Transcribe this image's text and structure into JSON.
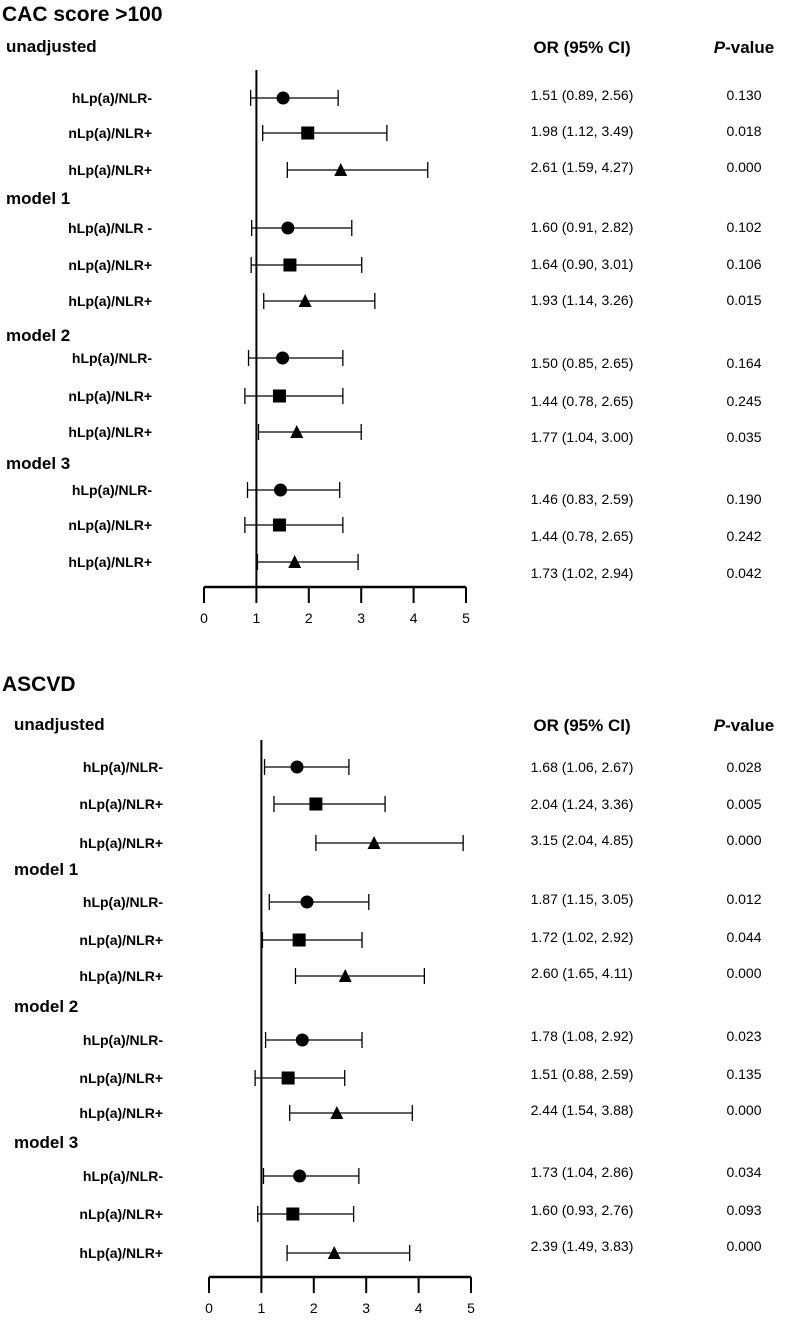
{
  "chart_data": [
    {
      "type": "forest",
      "title": "CAC score >100",
      "or_header": "OR (95% CI)",
      "p_header_italic": "P",
      "p_header_rest": "-value",
      "xlim": [
        0,
        5
      ],
      "xticks": [
        "0",
        "1",
        "2",
        "3",
        "4",
        "5"
      ],
      "reference_line": 1,
      "groups": [
        {
          "name": "unadjusted",
          "rows": [
            {
              "label": "hLp(a)/NLR-",
              "marker": "circle",
              "or": 1.51,
              "lo": 0.89,
              "hi": 2.56,
              "or_text": "1.51 (0.89, 2.56)",
              "p": "0.130"
            },
            {
              "label": "nLp(a)/NLR+",
              "marker": "square",
              "or": 1.98,
              "lo": 1.12,
              "hi": 3.49,
              "or_text": "1.98 (1.12, 3.49)",
              "p": "0.018"
            },
            {
              "label": "hLp(a)/NLR+",
              "marker": "triangle",
              "or": 2.61,
              "lo": 1.59,
              "hi": 4.27,
              "or_text": "2.61 (1.59, 4.27)",
              "p": "0.000"
            }
          ]
        },
        {
          "name": "model 1",
          "rows": [
            {
              "label": "hLp(a)/NLR -",
              "marker": "circle",
              "or": 1.6,
              "lo": 0.91,
              "hi": 2.82,
              "or_text": "1.60 (0.91, 2.82)",
              "p": "0.102"
            },
            {
              "label": "nLp(a)/NLR+",
              "marker": "square",
              "or": 1.64,
              "lo": 0.9,
              "hi": 3.01,
              "or_text": "1.64 (0.90, 3.01)",
              "p": "0.106"
            },
            {
              "label": "hLp(a)/NLR+",
              "marker": "triangle",
              "or": 1.93,
              "lo": 1.14,
              "hi": 3.26,
              "or_text": "1.93 (1.14, 3.26)",
              "p": "0.015"
            }
          ]
        },
        {
          "name": "model 2",
          "rows": [
            {
              "label": "hLp(a)/NLR-",
              "marker": "circle",
              "or": 1.5,
              "lo": 0.85,
              "hi": 2.65,
              "or_text": "1.50 (0.85, 2.65)",
              "p": "0.164"
            },
            {
              "label": "nLp(a)/NLR+",
              "marker": "square",
              "or": 1.44,
              "lo": 0.78,
              "hi": 2.65,
              "or_text": "1.44 (0.78, 2.65)",
              "p": "0.245"
            },
            {
              "label": "hLp(a)/NLR+",
              "marker": "triangle",
              "or": 1.77,
              "lo": 1.04,
              "hi": 3.0,
              "or_text": "1.77 (1.04, 3.00)",
              "p": "0.035"
            }
          ]
        },
        {
          "name": "model 3",
          "rows": [
            {
              "label": "hLp(a)/NLR-",
              "marker": "circle",
              "or": 1.46,
              "lo": 0.83,
              "hi": 2.59,
              "or_text": "1.46 (0.83, 2.59)",
              "p": "0.190"
            },
            {
              "label": "nLp(a)/NLR+",
              "marker": "square",
              "or": 1.44,
              "lo": 0.78,
              "hi": 2.65,
              "or_text": "1.44 (0.78, 2.65)",
              "p": "0.242"
            },
            {
              "label": "hLp(a)/NLR+",
              "marker": "triangle",
              "or": 1.73,
              "lo": 1.02,
              "hi": 2.94,
              "or_text": "1.73 (1.02, 2.94)",
              "p": "0.042"
            }
          ]
        }
      ]
    },
    {
      "type": "forest",
      "title": "ASCVD",
      "or_header": "OR (95% CI)",
      "p_header_italic": "P",
      "p_header_rest": "-value",
      "xlim": [
        0,
        5
      ],
      "xticks": [
        "0",
        "1",
        "2",
        "3",
        "4",
        "5"
      ],
      "reference_line": 1,
      "groups": [
        {
          "name": "unadjusted",
          "rows": [
            {
              "label": "hLp(a)/NLR-",
              "marker": "circle",
              "or": 1.68,
              "lo": 1.06,
              "hi": 2.67,
              "or_text": "1.68 (1.06, 2.67)",
              "p": "0.028"
            },
            {
              "label": "nLp(a)/NLR+",
              "marker": "square",
              "or": 2.04,
              "lo": 1.24,
              "hi": 3.36,
              "or_text": "2.04 (1.24, 3.36)",
              "p": "0.005"
            },
            {
              "label": "hLp(a)/NLR+",
              "marker": "triangle",
              "or": 3.15,
              "lo": 2.04,
              "hi": 4.85,
              "or_text": "3.15 (2.04, 4.85)",
              "p": "0.000"
            }
          ]
        },
        {
          "name": "model 1",
          "rows": [
            {
              "label": "hLp(a)/NLR-",
              "marker": "circle",
              "or": 1.87,
              "lo": 1.15,
              "hi": 3.05,
              "or_text": "1.87 (1.15, 3.05)",
              "p": "0.012"
            },
            {
              "label": "nLp(a)/NLR+",
              "marker": "square",
              "or": 1.72,
              "lo": 1.02,
              "hi": 2.92,
              "or_text": "1.72 (1.02, 2.92)",
              "p": "0.044"
            },
            {
              "label": "hLp(a)/NLR+",
              "marker": "triangle",
              "or": 2.6,
              "lo": 1.65,
              "hi": 4.11,
              "or_text": "2.60 (1.65, 4.11)",
              "p": "0.000"
            }
          ]
        },
        {
          "name": "model 2",
          "rows": [
            {
              "label": "hLp(a)/NLR-",
              "marker": "circle",
              "or": 1.78,
              "lo": 1.08,
              "hi": 2.92,
              "or_text": "1.78 (1.08, 2.92)",
              "p": "0.023"
            },
            {
              "label": "nLp(a)/NLR+",
              "marker": "square",
              "or": 1.51,
              "lo": 0.88,
              "hi": 2.59,
              "or_text": "1.51 (0.88, 2.59)",
              "p": "0.135"
            },
            {
              "label": "hLp(a)/NLR+",
              "marker": "triangle",
              "or": 2.44,
              "lo": 1.54,
              "hi": 3.88,
              "or_text": "2.44 (1.54, 3.88)",
              "p": "0.000"
            }
          ]
        },
        {
          "name": "model 3",
          "rows": [
            {
              "label": "hLp(a)/NLR-",
              "marker": "circle",
              "or": 1.73,
              "lo": 1.04,
              "hi": 2.86,
              "or_text": "1.73 (1.04, 2.86)",
              "p": "0.034"
            },
            {
              "label": "nLp(a)/NLR+",
              "marker": "square",
              "or": 1.6,
              "lo": 0.93,
              "hi": 2.76,
              "or_text": "1.60 (0.93, 2.76)",
              "p": "0.093"
            },
            {
              "label": "hLp(a)/NLR+",
              "marker": "triangle",
              "or": 2.39,
              "lo": 1.49,
              "hi": 3.83,
              "or_text": "2.39 (1.49, 3.83)",
              "p": "0.000"
            }
          ]
        }
      ]
    }
  ]
}
